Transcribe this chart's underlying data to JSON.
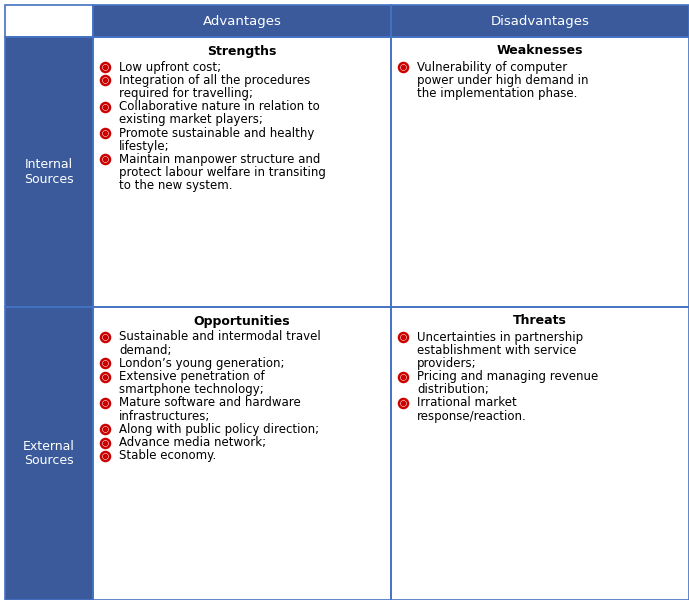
{
  "header_bg": "#3A5A9C",
  "header_text_color": "#FFFFFF",
  "left_col_bg": "#3A5A9C",
  "left_col_text_color": "#FFFFFF",
  "cell_bg": "#FFFFFF",
  "border_color": "#4472C4",
  "bullet_outer_color": "#CC0000",
  "bullet_inner_color": "#CC0000",
  "headers": [
    "",
    "Advantages",
    "Disadvantages"
  ],
  "row_labels": [
    "Internal\nSources",
    "External\nSources"
  ],
  "cell_titles": [
    [
      "Strengths",
      "Weaknesses"
    ],
    [
      "Opportunities",
      "Threats"
    ]
  ],
  "strengths": [
    "Low upfront cost;",
    "Integration of all the procedures\nrequired for travelling;",
    "Collaborative nature in relation to\nexisting market players;",
    "Promote sustainable and healthy\nlifestyle;",
    "Maintain manpower structure and\nprotect labour welfare in transiting\nto the new system."
  ],
  "weaknesses": [
    "Vulnerability of computer\npower under high demand in\nthe implementation phase."
  ],
  "opportunities": [
    "Sustainable and intermodal travel\ndemand;",
    "London’s young generation;",
    "Extensive penetration of\nsmartphone technology;",
    "Mature software and hardware\ninfrastructures;",
    "Along with public policy direction;",
    "Advance media network;",
    "Stable economy."
  ],
  "threats": [
    "Uncertainties in partnership\nestablishment with service\nproviders;",
    "Pricing and managing revenue\ndistribution;",
    "Irrational market\nresponse/reaction."
  ],
  "font_size_header": 9.5,
  "font_size_label": 9,
  "font_size_cell_title": 9,
  "font_size_bullet": 8.5
}
